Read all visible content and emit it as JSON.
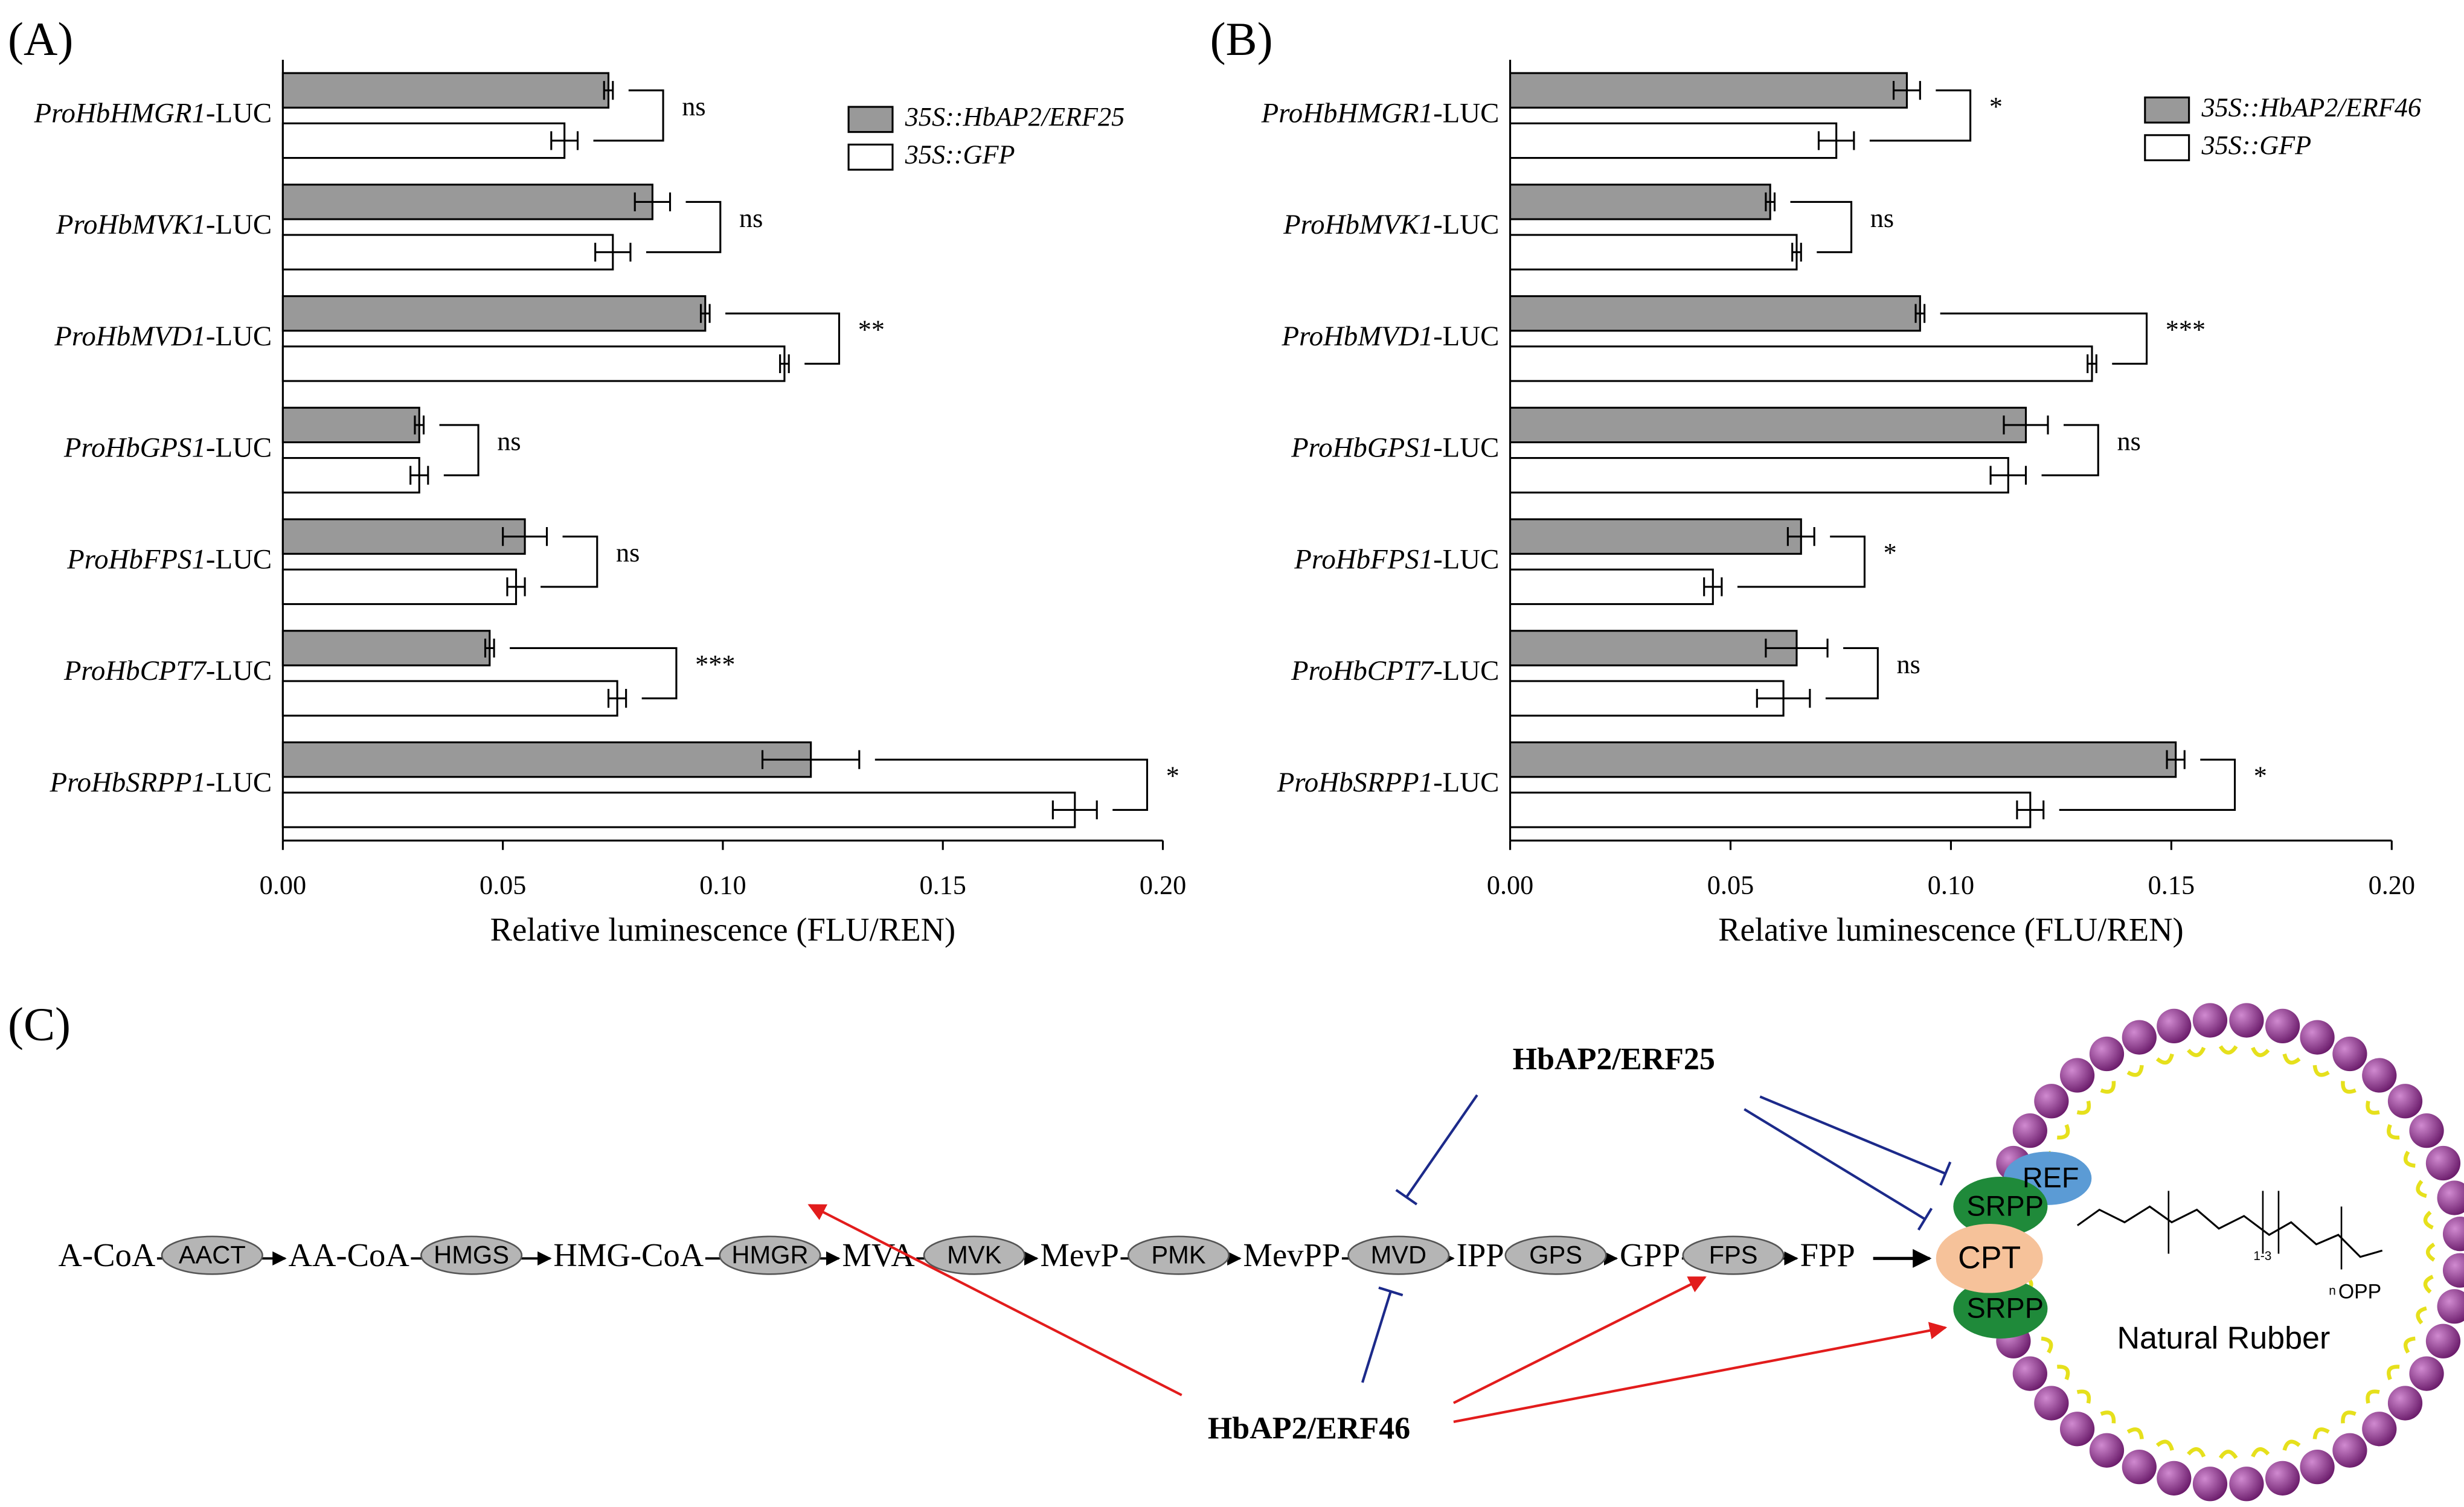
{
  "chart_data": [
    {
      "type": "hbar",
      "panel_label": "(A)",
      "xlabel": "Relative luminescence (FLU/REN)",
      "categories": [
        "ProHbHMGR1-LUC",
        "ProHbMVK1-LUC",
        "ProHbMVD1-LUC",
        "ProHbGPS1-LUC",
        "ProHbFPS1-LUC",
        "ProHbCPT7-LUC",
        "ProHbSRPP1-LUC"
      ],
      "series": [
        {
          "name": "35S::HbAP2/ERF25",
          "color": "#999999",
          "values": [
            0.074,
            0.084,
            0.096,
            0.031,
            0.055,
            0.047,
            0.12
          ],
          "errors": [
            0.001,
            0.004,
            0.001,
            0.001,
            0.005,
            0.001,
            0.011
          ]
        },
        {
          "name": "35S::GFP",
          "color": "#ffffff",
          "values": [
            0.064,
            0.075,
            0.114,
            0.031,
            0.053,
            0.076,
            0.18
          ],
          "errors": [
            0.003,
            0.004,
            0.001,
            0.002,
            0.002,
            0.002,
            0.005
          ]
        }
      ],
      "significance": [
        "ns",
        "ns",
        "**",
        "ns",
        "ns",
        "***",
        "*"
      ],
      "xlim": [
        0,
        0.2
      ],
      "xticks": [
        {
          "value": 0,
          "label": "0.00"
        },
        {
          "value": 0.05,
          "label": "0.05"
        },
        {
          "value": 0.1,
          "label": "0.10"
        },
        {
          "value": 0.15,
          "label": "0.15"
        },
        {
          "value": 0.2,
          "label": "0.20"
        }
      ],
      "legend": "upper right"
    },
    {
      "type": "hbar",
      "panel_label": "(B)",
      "xlabel": "Relative luminescence (FLU/REN)",
      "categories": [
        "ProHbHMGR1-LUC",
        "ProHbMVK1-LUC",
        "ProHbMVD1-LUC",
        "ProHbGPS1-LUC",
        "ProHbFPS1-LUC",
        "ProHbCPT7-LUC",
        "ProHbSRPP1-LUC"
      ],
      "series": [
        {
          "name": "35S::HbAP2/ERF46",
          "color": "#999999",
          "values": [
            0.09,
            0.059,
            0.093,
            0.117,
            0.066,
            0.065,
            0.151
          ],
          "errors": [
            0.003,
            0.001,
            0.001,
            0.005,
            0.003,
            0.007,
            0.002
          ]
        },
        {
          "name": "35S::GFP",
          "color": "#ffffff",
          "values": [
            0.074,
            0.065,
            0.132,
            0.113,
            0.046,
            0.062,
            0.118
          ],
          "errors": [
            0.004,
            0.001,
            0.001,
            0.004,
            0.002,
            0.006,
            0.003
          ]
        }
      ],
      "significance": [
        "*",
        "ns",
        "***",
        "ns",
        "*",
        "ns",
        "*"
      ],
      "xlim": [
        0,
        0.2
      ],
      "xticks": [
        {
          "value": 0,
          "label": "0.00"
        },
        {
          "value": 0.05,
          "label": "0.05"
        },
        {
          "value": 0.1,
          "label": "0.10"
        },
        {
          "value": 0.15,
          "label": "0.15"
        },
        {
          "value": 0.2,
          "label": "0.20"
        }
      ],
      "legend": "upper right"
    }
  ],
  "diagram": {
    "panel_label": "(C)",
    "metabolites": [
      "A-CoA",
      "AA-CoA",
      "HMG-CoA",
      "MVA",
      "MevP",
      "MevPP",
      "IPP",
      "GPP",
      "FPP"
    ],
    "enzymes": [
      "AACT",
      "HMGS",
      "HMGR",
      "MVK",
      "PMK",
      "MVD",
      "GPS",
      "FPS"
    ],
    "regulators": [
      "HbAP2/ERF25",
      "HbAP2/ERF46"
    ],
    "particle": {
      "proteins": [
        "REF",
        "SRPP",
        "CPT",
        "SRPP"
      ],
      "label": "Natural Rubber",
      "group": "OPP",
      "n": "n",
      "repeat": "1-3"
    }
  }
}
